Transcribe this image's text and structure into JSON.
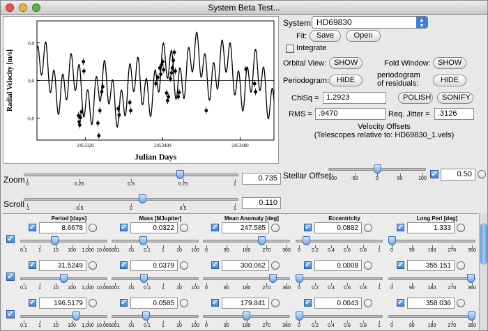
{
  "window": {
    "title": "System Beta Test..."
  },
  "chart_data": {
    "type": "scatter",
    "xlabel": "Julian Days",
    "ylabel": "Radial Velocity [m/s]",
    "xlim": [
      2453270,
      2453515
    ],
    "ylim": [
      -9.5,
      9.5
    ],
    "xticks": [
      {
        "v": 2453320,
        "label": "2453320"
      },
      {
        "v": 2453400,
        "label": "2453400"
      },
      {
        "v": 2453480,
        "label": "2453480"
      }
    ],
    "yticks": [
      {
        "v": 6.0,
        "label": "6.0"
      },
      {
        "v": 0.0,
        "label": "0.0"
      },
      {
        "v": -6.0,
        "label": "-6.0"
      }
    ],
    "points": [
      [
        2453313,
        -5.6
      ],
      [
        2453313.6,
        -6.6
      ],
      [
        2453314.2,
        -7.1
      ],
      [
        2453315,
        -5.9
      ],
      [
        2453316,
        -5.0
      ],
      [
        2453318,
        3.0
      ],
      [
        2453318.5,
        1.5
      ],
      [
        2453333,
        -6.8
      ],
      [
        2453334,
        -8.8
      ],
      [
        2453335,
        -4.8
      ],
      [
        2453337,
        -1.8
      ],
      [
        2453338,
        -1.0
      ],
      [
        2453354,
        -4.5
      ],
      [
        2453355,
        -5.5
      ],
      [
        2453366,
        -3.5
      ],
      [
        2453367,
        -4.8
      ],
      [
        2453393,
        -0.5
      ],
      [
        2453395,
        0.5
      ],
      [
        2453397,
        2.0
      ],
      [
        2453398,
        1.0
      ],
      [
        2453399,
        2.5
      ],
      [
        2453400,
        3.0
      ],
      [
        2453401,
        1.7
      ],
      [
        2453404,
        -2.0
      ],
      [
        2453405,
        -3.2
      ],
      [
        2453406,
        -2.6
      ],
      [
        2453408,
        0.3
      ],
      [
        2453409,
        1.2
      ],
      [
        2453410,
        2.0
      ],
      [
        2453411,
        3.2
      ],
      [
        2453412,
        4.5
      ],
      [
        2453413,
        1.5
      ],
      [
        2453416,
        -2.6
      ],
      [
        2453417,
        -1.9
      ],
      [
        2453445,
        -4.8
      ],
      [
        2453486,
        1.8
      ],
      [
        2453495,
        -0.5
      ],
      [
        2453496,
        -1.8
      ]
    ]
  },
  "controls": {
    "system_label": "System:",
    "system_value": "HD69830",
    "fit_label": "Fit:",
    "save": "Save",
    "open": "Open",
    "integrate": "Integrate",
    "orbital_view": "Orbital View:",
    "orbital_btn": "SHOW",
    "fold_window": "Fold Window:",
    "fold_btn": "SHOW",
    "periodogram": "Periodogram:",
    "periodogram_btn": "HIDE",
    "periodogram_res_1": "periodogram",
    "periodogram_res_2": "of residuals:",
    "periodogram_res_btn": "HIDE",
    "chisq_label": "ChiSq =",
    "chisq_value": "1.2923",
    "polish": "POLISH",
    "sonify": "SONIFY",
    "rms_label": "RMS =",
    "rms_value": ".9470",
    "jitter_label": "Req. Jitter =",
    "jitter_value": ".3126",
    "vel_offsets": "Velocity Offsets",
    "vel_offsets_sub": "(Telescopes relative to: HD69830_1.vels)"
  },
  "sliders": {
    "zoom": {
      "label": "Zoom",
      "value": "0.735",
      "level": 0.735,
      "ticks": [
        "0",
        "0.25",
        "0.5",
        "0.75",
        "1"
      ]
    },
    "scroll": {
      "label": "Scroll",
      "value": "0.110",
      "level": 0.555,
      "ticks": [
        "-1",
        "-0.5",
        "0",
        "0.5",
        "1"
      ]
    },
    "stellar": {
      "label": "Stellar Offset",
      "value": "0.50",
      "level": 0.5025,
      "ticks": [
        "-100",
        "-50",
        "0",
        "50",
        "100"
      ]
    }
  },
  "params": {
    "headers": [
      "Period [days]",
      "Mass [MJupiter]",
      "Mean Anomaly [deg]",
      "Eccentricity",
      "Long Peri [deg]"
    ],
    "ticks": [
      [
        "0.1",
        "1",
        "10",
        "100",
        "1,000",
        "10,000"
      ],
      [
        ".001",
        ".01",
        "0.1",
        "1",
        "10",
        "100"
      ],
      [
        "0",
        "90",
        "180",
        "270",
        "360"
      ],
      [
        "0",
        "0.2",
        "0.4",
        "0.6",
        "0.8",
        "1"
      ],
      [
        "0",
        "90",
        "180",
        "270",
        "360"
      ]
    ],
    "rows": [
      {
        "values": [
          "8.6678",
          "0.0322",
          "247.585",
          "0.0882",
          "1.333"
        ],
        "levels": [
          0.39,
          0.35,
          0.69,
          0.09,
          0.004
        ]
      },
      {
        "values": [
          "31.5249",
          "0.0379",
          "300.062",
          "0.0008",
          "355.151"
        ],
        "levels": [
          0.5,
          0.36,
          0.83,
          0.0,
          0.99
        ]
      },
      {
        "values": [
          "196.5179",
          "0.0585",
          "179.841",
          "0.0043",
          "358.036"
        ],
        "levels": [
          0.66,
          0.39,
          0.5,
          0.005,
          0.995
        ]
      }
    ]
  }
}
